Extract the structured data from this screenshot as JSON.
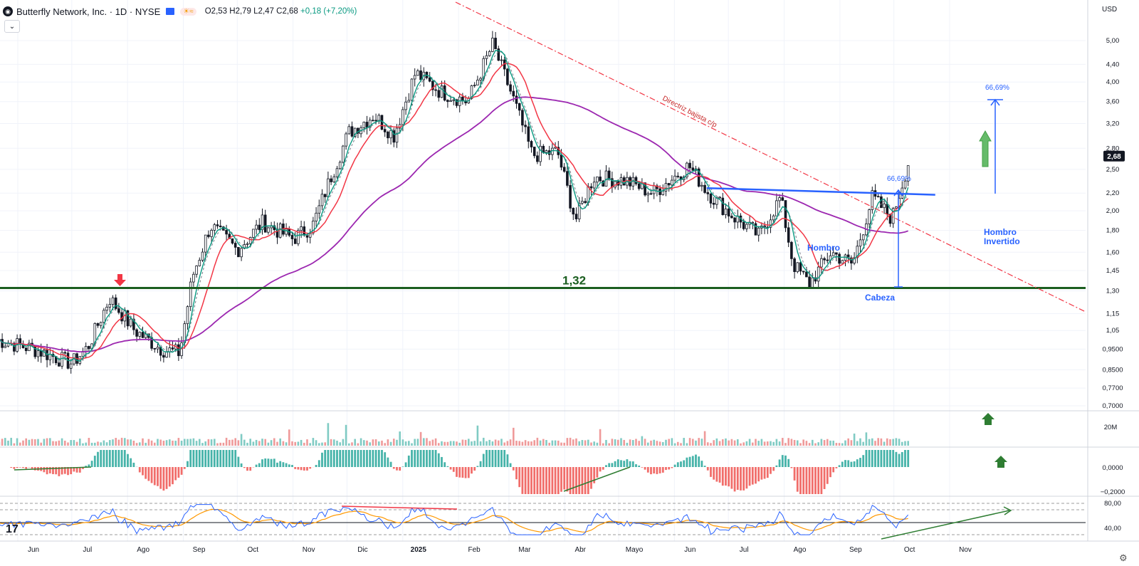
{
  "header": {
    "symbol_title": "Butterfly Network, Inc. · 1D · NYSE",
    "ohlc": {
      "o": "O2,53",
      "h": "H2,79",
      "l": "L2,47",
      "c": "C2,68",
      "change": "+0,18 (+7,20%)"
    }
  },
  "currency": "USD",
  "tv_logo": "17",
  "chart_data": {
    "type": "candlestick",
    "price_axis_ticks": [
      "5,00",
      "4,40",
      "4,00",
      "3,60",
      "3,20",
      "2,80",
      "2,50",
      "2,20",
      "2,00",
      "1,80",
      "1,60",
      "1,45",
      "1,30",
      "1,15",
      "1,05",
      "0,9500",
      "0,8500",
      "0,7700",
      "0,7000"
    ],
    "price_scale": "log",
    "last_price": "2,68",
    "time_axis_ticks": [
      "Jun",
      "Jul",
      "Ago",
      "Sep",
      "Oct",
      "Nov",
      "Dic",
      "2025",
      "Feb",
      "Mar",
      "Abr",
      "Mayo",
      "Jun",
      "Jul",
      "Ago",
      "Sep",
      "Oct",
      "Nov"
    ],
    "price_path": [
      [
        "2024-05-20",
        1.0
      ],
      [
        "2024-06-10",
        0.95
      ],
      [
        "2024-07-01",
        0.88
      ],
      [
        "2024-07-10",
        0.96
      ],
      [
        "2024-07-22",
        1.25
      ],
      [
        "2024-08-05",
        1.05
      ],
      [
        "2024-08-20",
        0.95
      ],
      [
        "2024-08-30",
        0.93
      ],
      [
        "2024-09-06",
        1.4
      ],
      [
        "2024-09-16",
        1.85
      ],
      [
        "2024-10-01",
        1.62
      ],
      [
        "2024-10-15",
        1.88
      ],
      [
        "2024-11-01",
        1.72
      ],
      [
        "2024-11-12",
        1.85
      ],
      [
        "2024-11-22",
        2.4
      ],
      [
        "2024-12-02",
        3.05
      ],
      [
        "2024-12-16",
        3.35
      ],
      [
        "2024-12-27",
        3.0
      ],
      [
        "2025-01-08",
        4.2
      ],
      [
        "2025-01-22",
        3.8
      ],
      [
        "2025-02-06",
        3.6
      ],
      [
        "2025-02-20",
        4.9
      ],
      [
        "2025-03-03",
        3.7
      ],
      [
        "2025-03-14",
        2.7
      ],
      [
        "2025-03-28",
        2.75
      ],
      [
        "2025-04-07",
        1.9
      ],
      [
        "2025-04-17",
        2.4
      ],
      [
        "2025-05-05",
        2.35
      ],
      [
        "2025-05-20",
        2.2
      ],
      [
        "2025-06-09",
        2.55
      ],
      [
        "2025-06-20",
        2.2
      ],
      [
        "2025-07-03",
        1.95
      ],
      [
        "2025-07-18",
        1.75
      ],
      [
        "2025-07-30",
        2.15
      ],
      [
        "2025-08-06",
        1.5
      ],
      [
        "2025-08-15",
        1.35
      ],
      [
        "2025-08-27",
        1.6
      ],
      [
        "2025-09-08",
        1.5
      ],
      [
        "2025-09-19",
        2.15
      ],
      [
        "2025-09-30",
        1.92
      ],
      [
        "2025-10-10",
        2.68
      ]
    ],
    "indicators": [
      {
        "name": "ma-fast",
        "color": "#089981"
      },
      {
        "name": "ma-dashed",
        "color": "#787b86"
      },
      {
        "name": "ma-medium",
        "color": "#f23645"
      },
      {
        "name": "ma-long",
        "color": "#9c27b0"
      }
    ],
    "annotations": {
      "support_level": {
        "value": 1.32,
        "label": "1,32",
        "color": "#1b5e20"
      },
      "trendline_label": "Directriz bajista c/p",
      "neckline": {
        "from": [
          "2025-06-19",
          2.26
        ],
        "to": [
          "2025-10-24",
          2.18
        ],
        "color": "#2962ff"
      },
      "pattern_labels": [
        "Hombro",
        "Cabeza",
        "Hombro\nInvertido"
      ],
      "measure_labels": [
        "66,69%",
        "66,69%"
      ]
    },
    "volume_axis_tick": "20M",
    "macd_axis_ticks": [
      "0,0000",
      "−0,2000"
    ],
    "rsi_axis_ticks": [
      "80,00",
      "40,00"
    ]
  }
}
